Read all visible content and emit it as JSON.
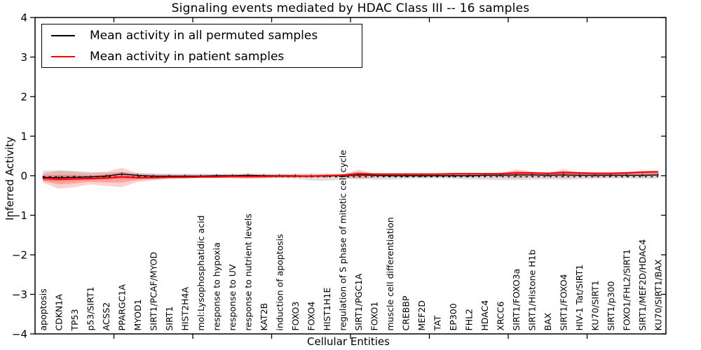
{
  "title": "Signaling events mediated by HDAC Class III -- 16 samples",
  "axes": {
    "x_label": "Cellular Entities",
    "y_label": "Inferred Activity"
  },
  "legend": {
    "items": [
      {
        "label": "Mean activity in all permuted samples",
        "color": "#000000"
      },
      {
        "label": "Mean activity in patient samples",
        "color": "#ff0000"
      }
    ]
  },
  "chart_data": {
    "type": "line",
    "title": "Signaling events mediated by HDAC Class III -- 16 samples",
    "xlabel": "Cellular Entities",
    "ylabel": "Inferred Activity",
    "ylim": [
      -4,
      4
    ],
    "grid": false,
    "legend_position": "upper left",
    "y_ticks": [
      {
        "value": -4,
        "label": "−4"
      },
      {
        "value": -3,
        "label": "−3"
      },
      {
        "value": -2,
        "label": "−2"
      },
      {
        "value": -1,
        "label": "−1"
      },
      {
        "value": 0,
        "label": "0"
      },
      {
        "value": 1,
        "label": "1"
      },
      {
        "value": 2,
        "label": "2"
      },
      {
        "value": 3,
        "label": "3"
      },
      {
        "value": 4,
        "label": "4"
      }
    ],
    "x_major_ticks": [
      5,
      10,
      15,
      20,
      25,
      30,
      35
    ],
    "categories": [
      "apoptosis",
      "CDKN1A",
      "TP53",
      "p53/SIRT1",
      "ACSS2",
      "PPARGC1A",
      "MYOD1",
      "SIRT1/PCAF/MYOD",
      "SIRT1",
      "HIST2H4A",
      "mol:Lysophosphatidic acid",
      "response to hypoxia",
      "response to UV",
      "response to nutrient levels",
      "KAT2B",
      "induction of apoptosis",
      "FOXO3",
      "FOXO4",
      "HIST1H1E",
      "regulation of S phase of mitotic cell cycle",
      "SIRT1/PGC1A",
      "FOXO1",
      "muscle cell differentiation",
      "CREBBP",
      "MEF2D",
      "TAT",
      "EP300",
      "FHL2",
      "HDAC4",
      "XRCC6",
      "SIRT1/FOXO3a",
      "SIRT1/Histone H1b",
      "BAX",
      "SIRT1/FOXO4",
      "HIV-1 Tat/SIRT1",
      "KU70/SIRT1",
      "SIRT1/p300",
      "FOXO1/FHL2/SIRT1",
      "SIRT1/MEF2D/HDAC4",
      "KU70/SIRT1/BAX"
    ],
    "series": [
      {
        "name": "Mean activity in all permuted samples",
        "color": "#000000",
        "values": [
          -0.04,
          -0.05,
          -0.04,
          -0.03,
          -0.01,
          0.04,
          0.01,
          -0.01,
          -0.01,
          -0.01,
          -0.01,
          0.0,
          0.0,
          0.01,
          0.0,
          0.0,
          0.0,
          -0.01,
          -0.01,
          0.0,
          0.02,
          0.01,
          0.0,
          0.0,
          0.0,
          0.0,
          0.0,
          0.0,
          0.01,
          0.01,
          0.02,
          0.02,
          0.01,
          0.02,
          0.01,
          0.01,
          0.01,
          0.01,
          0.01,
          0.02
        ]
      },
      {
        "name": "Mean activity in patient samples",
        "color": "#ff0000",
        "values": [
          -0.07,
          -0.09,
          -0.08,
          -0.07,
          -0.06,
          -0.03,
          -0.05,
          -0.05,
          -0.04,
          -0.04,
          -0.03,
          -0.03,
          -0.02,
          -0.02,
          -0.02,
          -0.01,
          -0.01,
          -0.01,
          0.0,
          0.01,
          0.05,
          0.04,
          0.04,
          0.04,
          0.04,
          0.04,
          0.05,
          0.05,
          0.05,
          0.05,
          0.07,
          0.07,
          0.06,
          0.08,
          0.07,
          0.06,
          0.06,
          0.07,
          0.09,
          0.1
        ]
      }
    ],
    "bands": [
      {
        "name": "permuted-envelope",
        "color": "#000000",
        "opacity": 0.13,
        "upper": [
          0.13,
          0.14,
          0.12,
          0.1,
          0.08,
          0.09,
          0.07,
          0.06,
          0.05,
          0.05,
          0.05,
          0.05,
          0.05,
          0.06,
          0.05,
          0.05,
          0.05,
          0.06,
          0.06,
          0.05,
          0.07,
          0.06,
          0.05,
          0.05,
          0.05,
          0.05,
          0.05,
          0.06,
          0.06,
          0.06,
          0.07,
          0.07,
          0.06,
          0.07,
          0.06,
          0.06,
          0.06,
          0.07,
          0.08,
          0.08
        ],
        "lower": [
          -0.14,
          -0.15,
          -0.13,
          -0.11,
          -0.09,
          -0.09,
          -0.08,
          -0.07,
          -0.06,
          -0.06,
          -0.06,
          -0.06,
          -0.06,
          -0.07,
          -0.06,
          -0.06,
          -0.07,
          -0.12,
          -0.13,
          -0.09,
          -0.07,
          -0.1,
          -0.1,
          -0.08,
          -0.07,
          -0.07,
          -0.08,
          -0.09,
          -0.1,
          -0.11,
          -0.11,
          -0.1,
          -0.09,
          -0.1,
          -0.09,
          -0.08,
          -0.07,
          -0.07,
          -0.08,
          -0.08
        ]
      },
      {
        "name": "patient-envelope",
        "color": "#ff0000",
        "opacity": 0.18,
        "upper": [
          0.06,
          0.12,
          0.1,
          0.06,
          0.1,
          0.2,
          0.06,
          0.04,
          0.03,
          0.03,
          0.03,
          0.03,
          0.03,
          0.04,
          0.03,
          0.03,
          0.03,
          0.03,
          0.03,
          0.04,
          0.15,
          0.06,
          0.05,
          0.05,
          0.05,
          0.05,
          0.05,
          0.06,
          0.06,
          0.07,
          0.16,
          0.1,
          0.07,
          0.16,
          0.08,
          0.07,
          0.07,
          0.08,
          0.1,
          0.11
        ],
        "lower": [
          -0.18,
          -0.33,
          -0.29,
          -0.22,
          -0.26,
          -0.29,
          -0.16,
          -0.12,
          -0.08,
          -0.07,
          -0.06,
          -0.06,
          -0.06,
          -0.07,
          -0.06,
          -0.05,
          -0.05,
          -0.05,
          -0.04,
          -0.03,
          -0.1,
          -0.04,
          -0.03,
          -0.03,
          -0.03,
          -0.03,
          -0.03,
          -0.03,
          -0.03,
          -0.03,
          -0.06,
          -0.04,
          -0.03,
          -0.05,
          -0.03,
          -0.03,
          -0.03,
          -0.02,
          -0.02,
          -0.02
        ]
      }
    ],
    "zero_line": {
      "value": 0,
      "style": "dashed",
      "color": "#000000"
    }
  }
}
